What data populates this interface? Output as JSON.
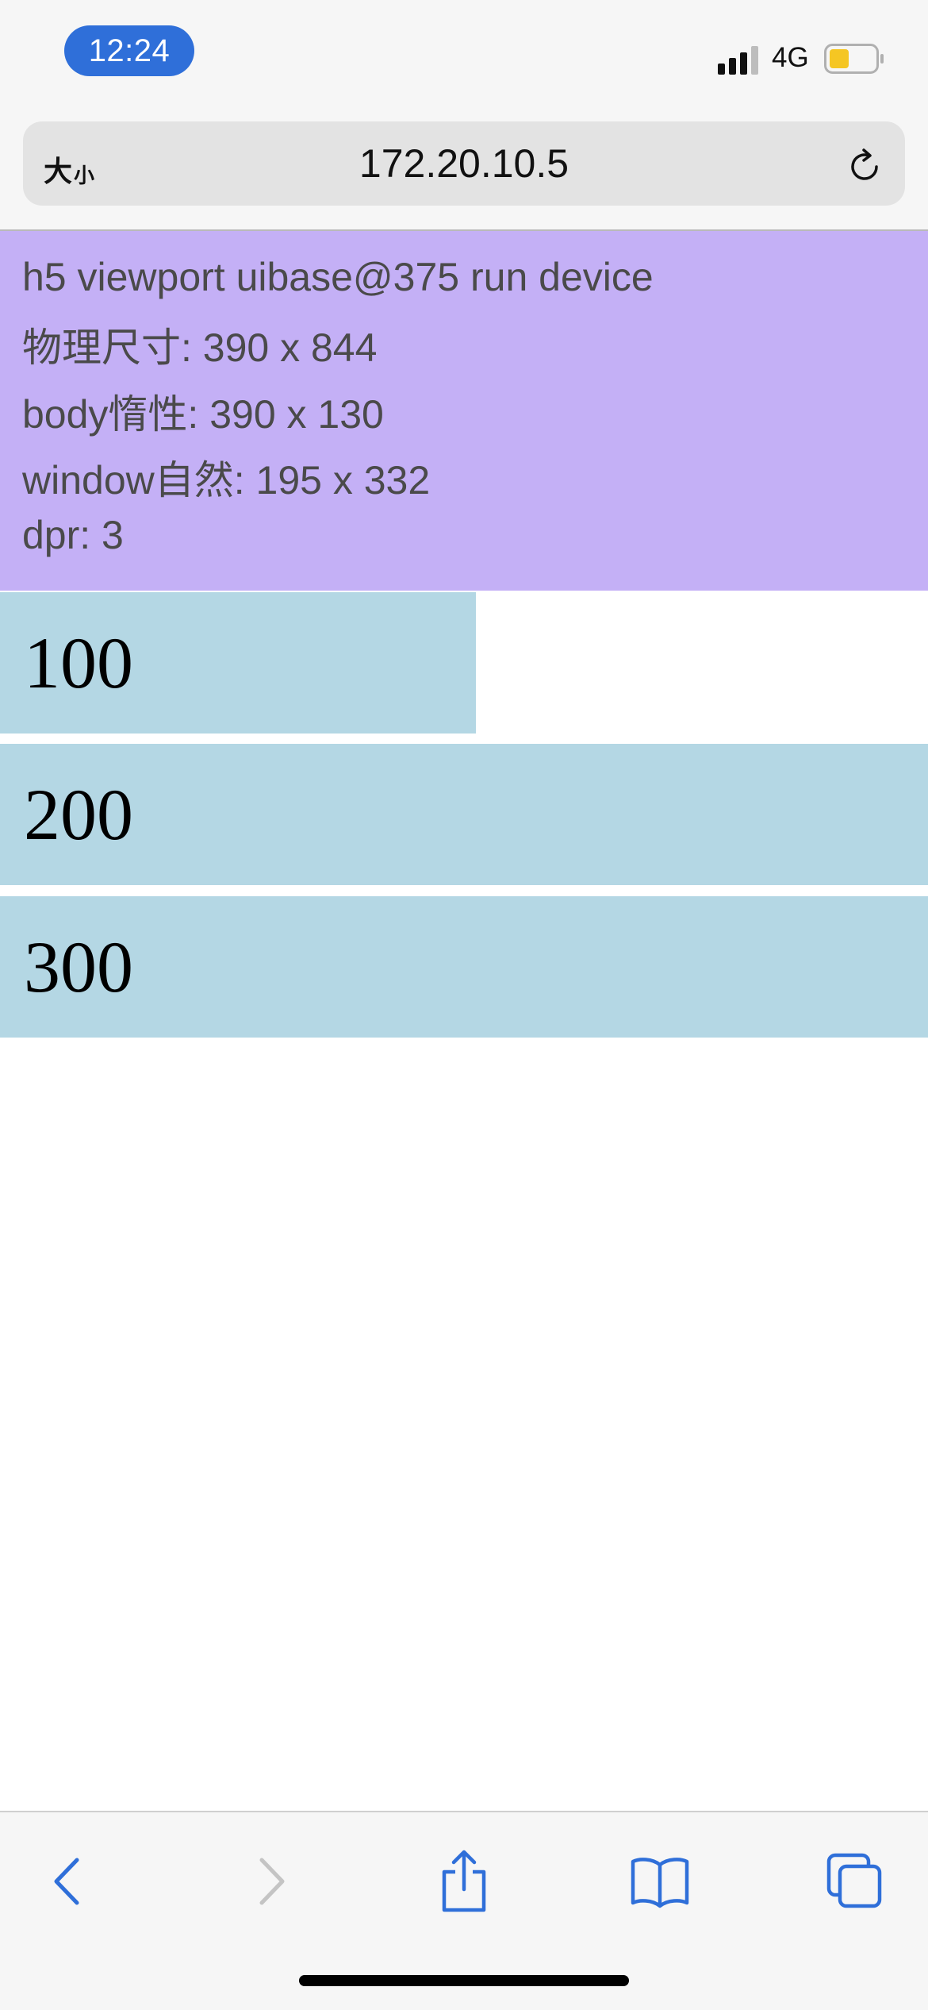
{
  "status_bar": {
    "time": "12:24",
    "network": "4G",
    "icons": [
      "signal-icon",
      "battery-icon"
    ],
    "battery_color": "#f5c623"
  },
  "browser": {
    "text_size_big": "大",
    "text_size_small": "小",
    "url": "172.20.10.5",
    "icons": [
      "reload-icon",
      "back-icon",
      "forward-icon",
      "share-icon",
      "bookmarks-icon",
      "tabs-icon"
    ],
    "accent": "#2f6fd9"
  },
  "page": {
    "info_lines": [
      "h5 viewport uibase@375 run device",
      "物理尺寸: 390 x 844",
      "body惰性: 390 x 130",
      "window自然: 195 x 332",
      "dpr: 3"
    ],
    "bars": [
      {
        "label": "100",
        "value": 100
      },
      {
        "label": "200",
        "value": 200
      },
      {
        "label": "300",
        "value": 300
      }
    ],
    "panel_color": "#c4b0f6",
    "bar_color": "#b4d7e4"
  }
}
